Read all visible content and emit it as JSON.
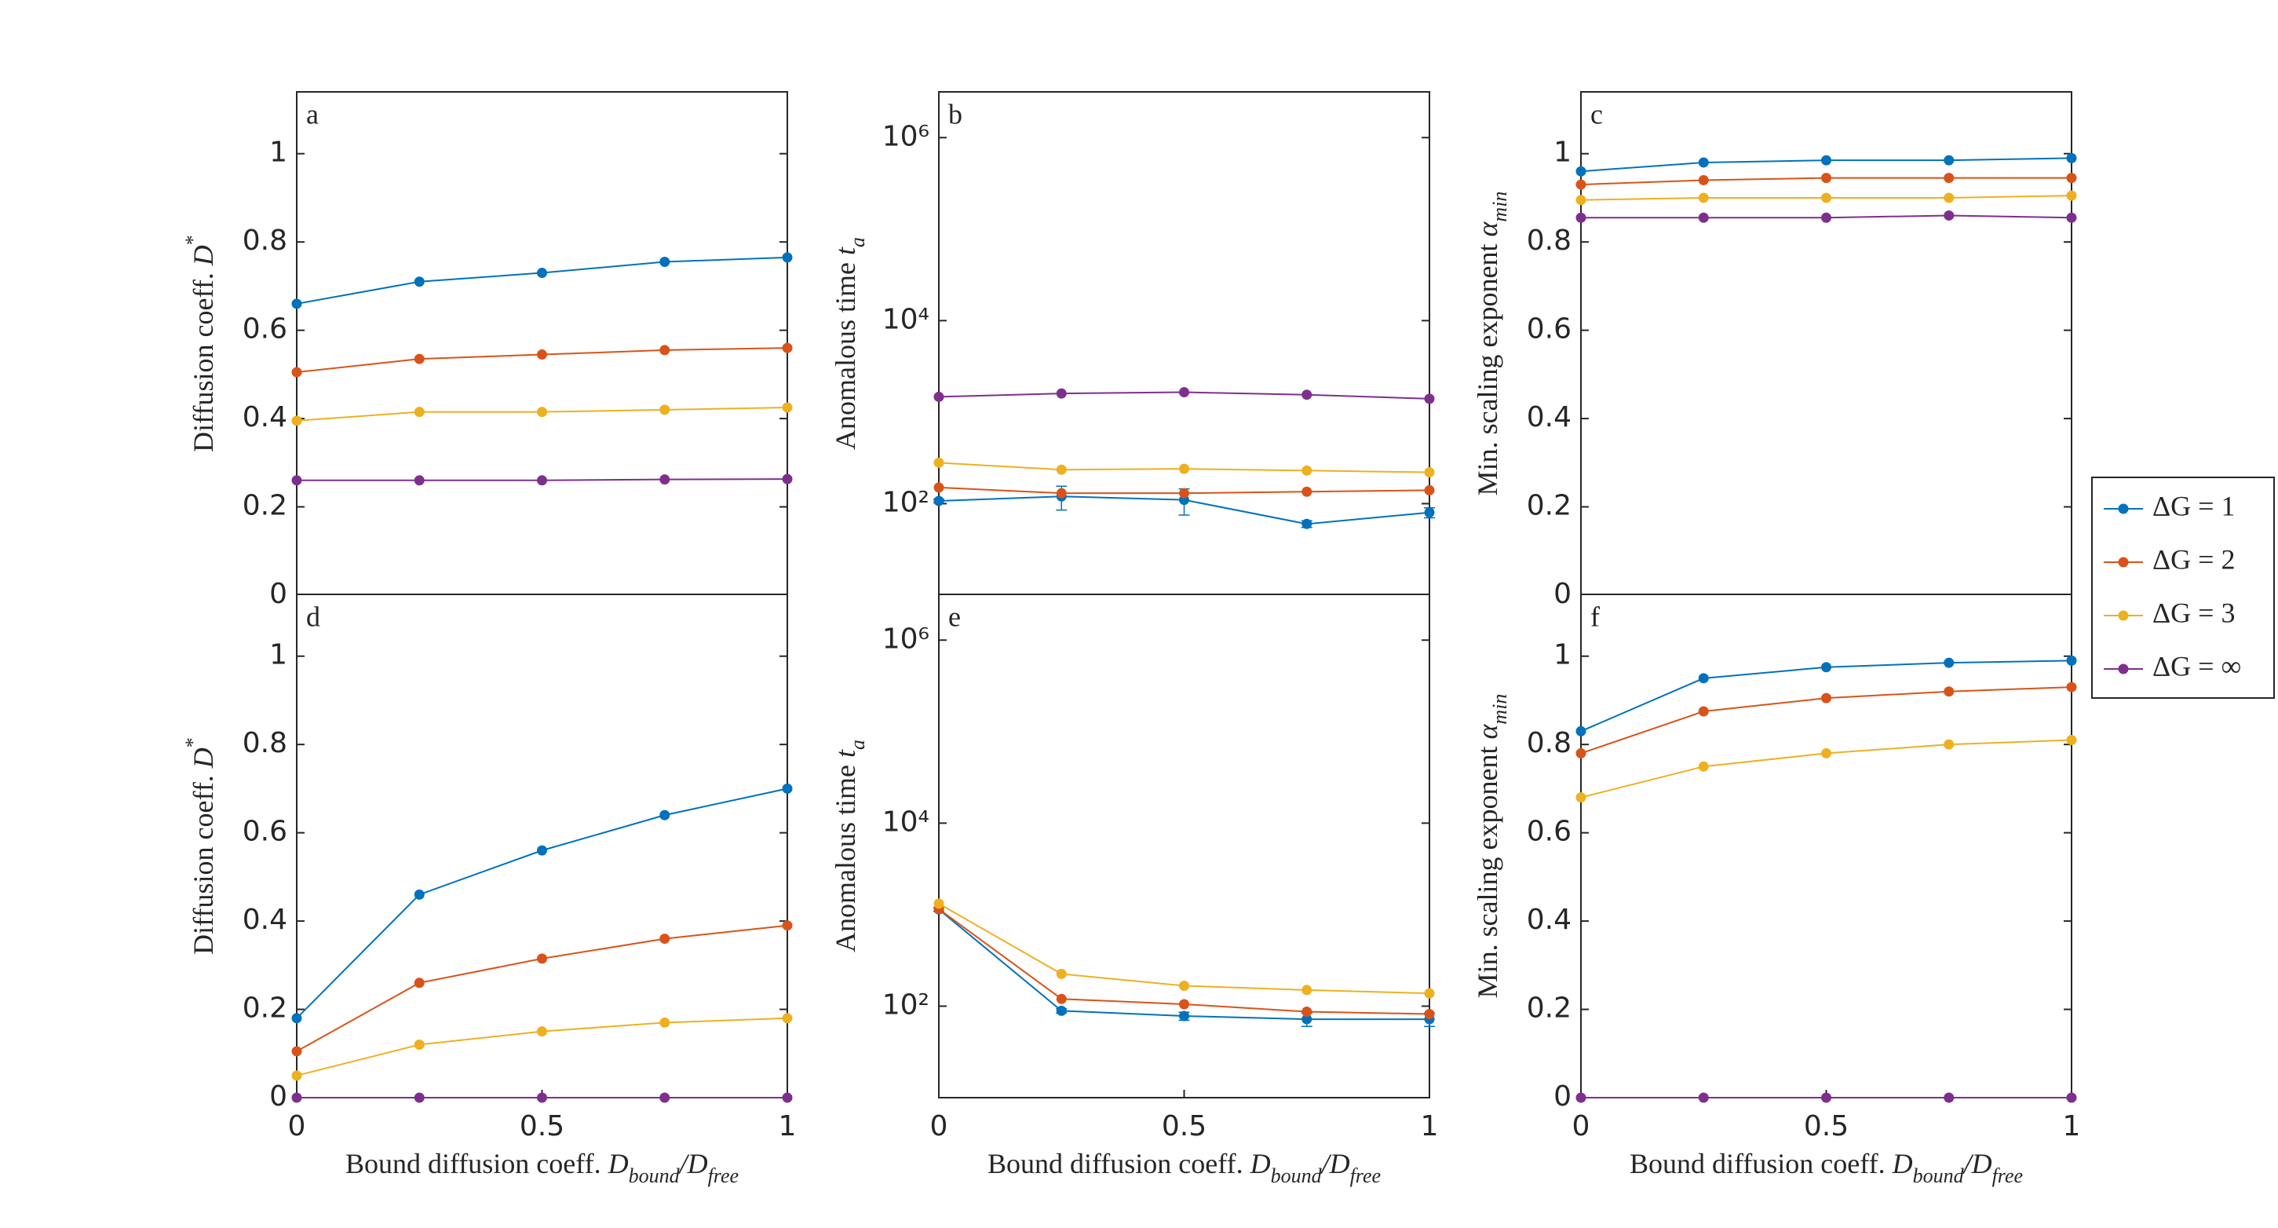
{
  "legend": {
    "location": "east outside",
    "entries": [
      {
        "name": "ΔG = 1",
        "color": "#0072bd"
      },
      {
        "name": "ΔG = 2",
        "color": "#d95319"
      },
      {
        "name": "ΔG = 3",
        "color": "#edb120"
      },
      {
        "name": "ΔG = ∞",
        "color": "#7e2f8e"
      }
    ]
  },
  "chart_data": [
    {
      "type": "line",
      "panel_label": "a",
      "ylabel": [
        {
          "text": "Diffusion coeff. "
        },
        {
          "text": "D",
          "style": "italic"
        },
        {
          "text": "*",
          "style": "sup"
        }
      ],
      "x": [
        0,
        0.25,
        0.5,
        0.75,
        1
      ],
      "xlim": [
        0,
        1
      ],
      "ylim": [
        0,
        1.14
      ],
      "yticks": [
        0,
        0.2,
        0.4,
        0.6,
        0.8,
        1
      ],
      "series": [
        {
          "values": [
            0.66,
            0.71,
            0.73,
            0.755,
            0.765
          ]
        },
        {
          "values": [
            0.505,
            0.535,
            0.545,
            0.555,
            0.56
          ]
        },
        {
          "values": [
            0.395,
            0.415,
            0.415,
            0.42,
            0.425
          ]
        },
        {
          "values": [
            0.26,
            0.26,
            0.26,
            0.262,
            0.263
          ]
        }
      ]
    },
    {
      "type": "line",
      "panel_label": "b",
      "yscale": "log",
      "ylabel": [
        {
          "text": "Anomalous time "
        },
        {
          "text": "t",
          "style": "italic"
        },
        {
          "text": "a",
          "style": "sub"
        }
      ],
      "x": [
        0,
        0.25,
        0.5,
        0.75,
        1
      ],
      "xlim": [
        0,
        1
      ],
      "ylim": [
        10,
        3162278
      ],
      "yticks": [
        {
          "value": 100,
          "label": "10²"
        },
        {
          "value": 10000,
          "label": "10⁴"
        },
        {
          "value": 1000000,
          "label": "10⁶"
        }
      ],
      "series": [
        {
          "values": [
            107,
            120,
            110,
            60,
            80
          ],
          "errors": [
            5,
            35,
            35,
            5,
            10
          ]
        },
        {
          "values": [
            150,
            130,
            130,
            135,
            140
          ]
        },
        {
          "values": [
            280,
            235,
            240,
            230,
            220
          ]
        },
        {
          "values": [
            1470,
            1600,
            1650,
            1550,
            1400
          ]
        }
      ]
    },
    {
      "type": "line",
      "panel_label": "c",
      "ylabel": [
        {
          "text": "Min. scaling exponent "
        },
        {
          "text": "α",
          "style": "italic"
        },
        {
          "text": "min",
          "style": "sub"
        }
      ],
      "x": [
        0,
        0.25,
        0.5,
        0.75,
        1
      ],
      "xlim": [
        0,
        1
      ],
      "ylim": [
        0,
        1.14
      ],
      "yticks": [
        0,
        0.2,
        0.4,
        0.6,
        0.8,
        1
      ],
      "series": [
        {
          "values": [
            0.96,
            0.98,
            0.985,
            0.985,
            0.99
          ]
        },
        {
          "values": [
            0.93,
            0.94,
            0.945,
            0.945,
            0.945
          ]
        },
        {
          "values": [
            0.895,
            0.9,
            0.9,
            0.9,
            0.905
          ]
        },
        {
          "values": [
            0.855,
            0.855,
            0.855,
            0.86,
            0.855
          ]
        }
      ]
    },
    {
      "type": "line",
      "panel_label": "d",
      "ylabel": [
        {
          "text": "Diffusion coeff. "
        },
        {
          "text": "D",
          "style": "italic"
        },
        {
          "text": "*",
          "style": "sup"
        }
      ],
      "xlabel": [
        {
          "text": "Bound diffusion coeff. "
        },
        {
          "text": "D",
          "style": "italic"
        },
        {
          "text": "bound",
          "style": "sub"
        },
        {
          "text": "/D",
          "style": "italic"
        },
        {
          "text": "free",
          "style": "sub"
        }
      ],
      "x": [
        0,
        0.25,
        0.5,
        0.75,
        1
      ],
      "xlim": [
        0,
        1
      ],
      "xticks": [
        0,
        0.5,
        1
      ],
      "ylim": [
        0,
        1.14
      ],
      "yticks": [
        0,
        0.2,
        0.4,
        0.6,
        0.8,
        1
      ],
      "series": [
        {
          "values": [
            0.18,
            0.46,
            0.56,
            0.64,
            0.7
          ]
        },
        {
          "values": [
            0.105,
            0.26,
            0.315,
            0.36,
            0.39
          ]
        },
        {
          "values": [
            0.05,
            0.12,
            0.15,
            0.17,
            0.18
          ]
        },
        {
          "values": [
            0,
            0,
            0,
            0,
            0
          ]
        }
      ]
    },
    {
      "type": "line",
      "panel_label": "e",
      "yscale": "log",
      "ylabel": [
        {
          "text": "Anomalous time "
        },
        {
          "text": "t",
          "style": "italic"
        },
        {
          "text": "a",
          "style": "sub"
        }
      ],
      "xlabel": [
        {
          "text": "Bound diffusion coeff. "
        },
        {
          "text": "D",
          "style": "italic"
        },
        {
          "text": "bound",
          "style": "sub"
        },
        {
          "text": "/D",
          "style": "italic"
        },
        {
          "text": "free",
          "style": "sub"
        }
      ],
      "x": [
        0,
        0.25,
        0.5,
        0.75,
        1
      ],
      "xlim": [
        0,
        1
      ],
      "xticks": [
        0,
        0.5,
        1
      ],
      "ylim": [
        10,
        3162278
      ],
      "yticks": [
        {
          "value": 100,
          "label": "10²"
        },
        {
          "value": 10000,
          "label": "10⁴"
        },
        {
          "value": 1000000,
          "label": "10⁶"
        }
      ],
      "series": [
        {
          "values": [
            1140,
            89,
            78,
            72,
            72
          ],
          "errors": [
            60,
            5,
            8,
            12,
            12
          ]
        },
        {
          "values": [
            1150,
            120,
            105,
            87,
            82
          ]
        },
        {
          "values": [
            1320,
            225,
            167,
            150,
            138
          ]
        }
      ]
    },
    {
      "type": "line",
      "panel_label": "f",
      "ylabel": [
        {
          "text": "Min. scaling exponent "
        },
        {
          "text": "α",
          "style": "italic"
        },
        {
          "text": "min",
          "style": "sub"
        }
      ],
      "xlabel": [
        {
          "text": "Bound diffusion coeff. "
        },
        {
          "text": "D",
          "style": "italic"
        },
        {
          "text": "bound",
          "style": "sub"
        },
        {
          "text": "/D",
          "style": "italic"
        },
        {
          "text": "free",
          "style": "sub"
        }
      ],
      "x": [
        0,
        0.25,
        0.5,
        0.75,
        1
      ],
      "xlim": [
        0,
        1
      ],
      "xticks": [
        0,
        0.5,
        1
      ],
      "ylim": [
        0,
        1.14
      ],
      "yticks": [
        0,
        0.2,
        0.4,
        0.6,
        0.8,
        1
      ],
      "series": [
        {
          "values": [
            0.83,
            0.95,
            0.975,
            0.985,
            0.99
          ]
        },
        {
          "values": [
            0.78,
            0.875,
            0.905,
            0.92,
            0.93
          ]
        },
        {
          "values": [
            0.68,
            0.75,
            0.78,
            0.8,
            0.81
          ]
        },
        {
          "values": [
            0,
            0,
            0,
            0,
            0
          ]
        }
      ]
    }
  ]
}
